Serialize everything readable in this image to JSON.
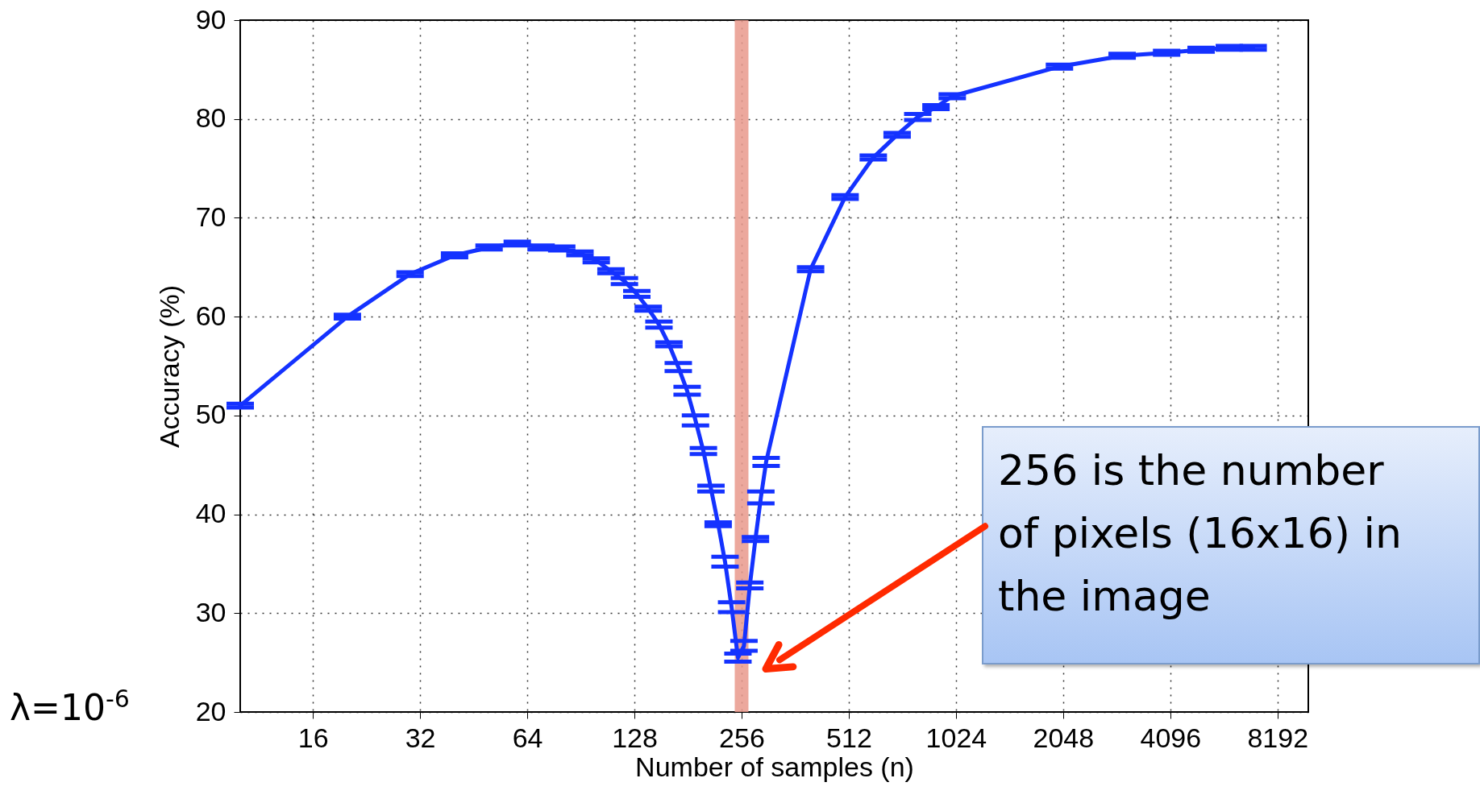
{
  "chart_data": {
    "type": "line",
    "xlabel": "Number of samples  (n)",
    "ylabel": "Accuracy (%)",
    "x": [
      10,
      20,
      30,
      40,
      50,
      60,
      70,
      80,
      90,
      100,
      110,
      120,
      130,
      140,
      150,
      160,
      170,
      180,
      190,
      200,
      210,
      220,
      230,
      240,
      250,
      260,
      270,
      280,
      290,
      300,
      400,
      500,
      600,
      700,
      800,
      900,
      1000,
      2000,
      3000,
      4000,
      5000,
      6000,
      7000
    ],
    "series": [
      {
        "color": "#1432ff",
        "values": [
          51.0,
          60.0,
          64.3,
          66.2,
          67.0,
          67.4,
          67.0,
          66.9,
          66.4,
          65.7,
          64.6,
          63.6,
          62.3,
          60.8,
          59.2,
          57.2,
          54.9,
          52.5,
          49.5,
          46.4,
          42.6,
          39.0,
          35.2,
          30.6,
          25.5,
          26.7,
          32.8,
          37.5,
          41.7,
          45.3,
          64.8,
          72.1,
          76.1,
          78.4,
          80.2,
          81.2,
          82.3,
          85.3,
          86.4,
          86.7,
          87.0,
          87.2,
          87.2
        ],
        "errors": [
          0.2,
          0.2,
          0.2,
          0.2,
          0.2,
          0.2,
          0.2,
          0.2,
          0.2,
          0.2,
          0.2,
          0.3,
          0.3,
          0.2,
          0.3,
          0.2,
          0.4,
          0.4,
          0.5,
          0.3,
          0.3,
          0.2,
          0.5,
          0.5,
          0.4,
          0.5,
          0.3,
          0.2,
          0.6,
          0.4,
          0.2,
          0.2,
          0.2,
          0.2,
          0.3,
          0.2,
          0.2,
          0.2,
          0.2,
          0.2,
          0.2,
          0.2,
          0.2
        ]
      }
    ],
    "log": "x",
    "xlim": [
      10,
      10000
    ],
    "xticks": [
      16,
      32,
      64,
      128,
      256,
      512,
      1024,
      2048,
      4096,
      8192
    ],
    "ylim": [
      20,
      90
    ],
    "yticks": [
      20,
      30,
      40,
      50,
      60,
      70,
      80,
      90
    ],
    "grid": true,
    "marker": "none",
    "ref_lines": [
      {
        "axis": "x",
        "value": 256,
        "color": "#e9998c"
      }
    ],
    "annotations": [
      "256 is the number of pixels (16x16) in the image",
      "λ=10$^{-6}$"
    ]
  }
}
